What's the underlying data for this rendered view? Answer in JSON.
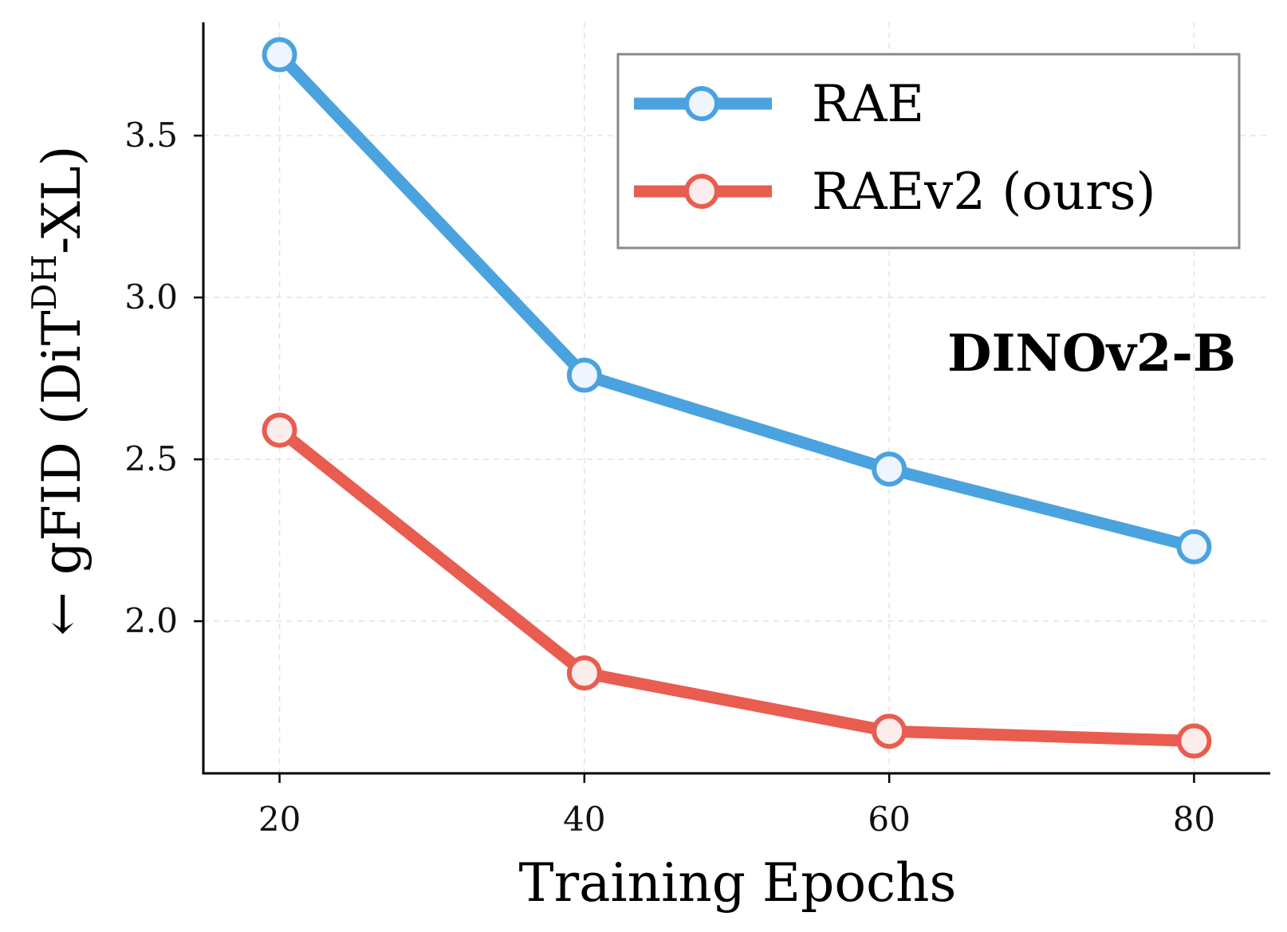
{
  "chart_data": {
    "type": "line",
    "x": [
      20,
      40,
      60,
      80
    ],
    "xlim": [
      15,
      85
    ],
    "ylim": [
      1.53,
      3.85
    ],
    "xticks": [
      20,
      40,
      60,
      80
    ],
    "yticks": [
      2.0,
      2.5,
      3.0,
      3.5
    ],
    "xtick_labels": [
      "20",
      "40",
      "60",
      "80"
    ],
    "ytick_labels": [
      "2.0",
      "2.5",
      "3.0",
      "3.5"
    ],
    "xlabel": "Training Epochs",
    "ylabel": {
      "arrow": "←",
      "prefix": "gFID (DiT",
      "superscript": "DH",
      "suffix": "-XL)"
    },
    "annotation": "DINOv2-B",
    "grid": true,
    "legend_position": "top-right",
    "series": [
      {
        "name": "RAE",
        "values": [
          3.75,
          2.76,
          2.47,
          2.23
        ],
        "color": "#4aa3df",
        "marker_fill": "#eef5fc"
      },
      {
        "name": "RAEv2 (ours)",
        "values": [
          2.59,
          1.84,
          1.66,
          1.63
        ],
        "color": "#e85d4f",
        "marker_fill": "#fcecec"
      }
    ]
  }
}
